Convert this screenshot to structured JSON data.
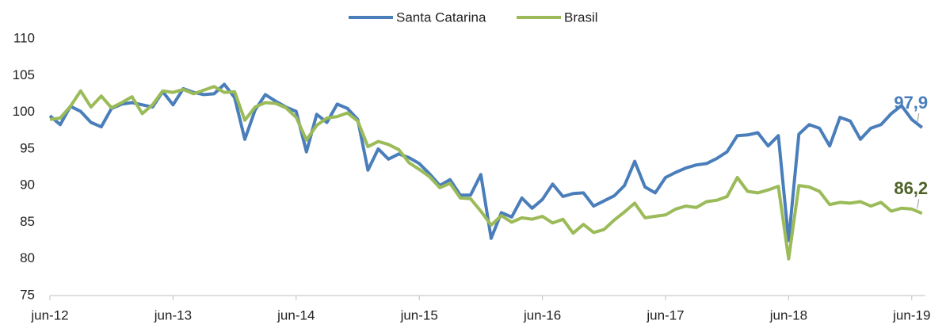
{
  "chart_data": {
    "type": "line",
    "categories": [
      "jun-12",
      null,
      null,
      null,
      null,
      null,
      null,
      null,
      null,
      null,
      null,
      null,
      "jun-13",
      null,
      null,
      null,
      null,
      null,
      null,
      null,
      null,
      null,
      null,
      null,
      "jun-14",
      null,
      null,
      null,
      null,
      null,
      null,
      null,
      null,
      null,
      null,
      null,
      "jun-15",
      null,
      null,
      null,
      null,
      null,
      null,
      null,
      null,
      null,
      null,
      null,
      "jun-16",
      null,
      null,
      null,
      null,
      null,
      null,
      null,
      null,
      null,
      null,
      null,
      "jun-17",
      null,
      null,
      null,
      null,
      null,
      null,
      null,
      null,
      null,
      null,
      null,
      "jun-18",
      null,
      null,
      null,
      null,
      null,
      null,
      null,
      null,
      null,
      null,
      null,
      "jun-19",
      null
    ],
    "series": [
      {
        "name": "Santa Catarina",
        "color": "#4a7ebb",
        "label_color": "#4a7ebb",
        "values": [
          99.5,
          98.3,
          100.8,
          100.1,
          98.6,
          98.0,
          100.5,
          101.1,
          101.3,
          101.0,
          100.7,
          102.8,
          101.0,
          103.2,
          102.7,
          102.4,
          102.5,
          103.8,
          102.0,
          96.3,
          100.3,
          102.4,
          101.5,
          100.7,
          100.1,
          94.6,
          99.7,
          98.6,
          101.1,
          100.5,
          99.0,
          92.1,
          95.0,
          93.6,
          94.3,
          93.8,
          93.0,
          91.6,
          90.0,
          90.8,
          88.7,
          88.7,
          91.5,
          82.8,
          86.3,
          85.7,
          88.3,
          86.9,
          88.1,
          90.2,
          88.5,
          88.9,
          89.0,
          87.2,
          87.9,
          88.6,
          90.0,
          93.3,
          89.8,
          89.0,
          91.1,
          91.8,
          92.4,
          92.8,
          93.0,
          93.7,
          94.6,
          96.8,
          96.9,
          97.2,
          95.4,
          96.8,
          82.5,
          97.0,
          98.3,
          97.8,
          95.4,
          99.3,
          98.8,
          96.3,
          97.8,
          98.3,
          99.8,
          100.9,
          99.0,
          97.9
        ],
        "value_labels": [
          null,
          null,
          null,
          null,
          null,
          null,
          null,
          null,
          null,
          null,
          null,
          null,
          null,
          null,
          null,
          null,
          null,
          null,
          null,
          null,
          null,
          null,
          null,
          null,
          null,
          null,
          null,
          null,
          null,
          null,
          null,
          null,
          null,
          null,
          null,
          null,
          null,
          null,
          null,
          null,
          null,
          null,
          null,
          null,
          null,
          null,
          null,
          null,
          null,
          null,
          null,
          null,
          null,
          null,
          null,
          null,
          null,
          null,
          null,
          null,
          null,
          null,
          null,
          null,
          null,
          null,
          null,
          null,
          null,
          null,
          null,
          null,
          null,
          null,
          null,
          null,
          null,
          null,
          null,
          null,
          null,
          null,
          null,
          null,
          null,
          "97,9"
        ]
      },
      {
        "name": "Brasil",
        "color": "#9bbb59",
        "label_color": "#4f6228",
        "values": [
          99.0,
          99.2,
          100.8,
          102.9,
          100.7,
          102.2,
          100.6,
          101.3,
          102.1,
          99.8,
          101.0,
          102.9,
          102.7,
          103.1,
          102.5,
          103.0,
          103.5,
          102.7,
          102.8,
          98.9,
          100.7,
          101.3,
          101.2,
          100.6,
          99.3,
          96.2,
          98.2,
          99.2,
          99.4,
          99.9,
          98.8,
          95.3,
          96.0,
          95.6,
          94.9,
          93.1,
          92.2,
          91.2,
          89.7,
          90.3,
          88.3,
          88.2,
          86.5,
          84.6,
          85.9,
          85.0,
          85.6,
          85.4,
          85.8,
          84.9,
          85.4,
          83.5,
          84.7,
          83.6,
          84.0,
          85.3,
          86.4,
          87.6,
          85.6,
          85.8,
          86.0,
          86.8,
          87.2,
          87.0,
          87.8,
          88.0,
          88.5,
          91.1,
          89.2,
          89.0,
          89.4,
          89.9,
          80.0,
          90.0,
          89.8,
          89.2,
          87.4,
          87.7,
          87.6,
          87.8,
          87.2,
          87.7,
          86.5,
          86.9,
          86.8,
          86.2
        ],
        "value_labels": [
          null,
          null,
          null,
          null,
          null,
          null,
          null,
          null,
          null,
          null,
          null,
          null,
          null,
          null,
          null,
          null,
          null,
          null,
          null,
          null,
          null,
          null,
          null,
          null,
          null,
          null,
          null,
          null,
          null,
          null,
          null,
          null,
          null,
          null,
          null,
          null,
          null,
          null,
          null,
          null,
          null,
          null,
          null,
          null,
          null,
          null,
          null,
          null,
          null,
          null,
          null,
          null,
          null,
          null,
          null,
          null,
          null,
          null,
          null,
          null,
          null,
          null,
          null,
          null,
          null,
          null,
          null,
          null,
          null,
          null,
          null,
          null,
          null,
          null,
          null,
          null,
          null,
          null,
          null,
          null,
          null,
          null,
          null,
          null,
          null,
          "86,2"
        ]
      }
    ],
    "ylim": [
      75,
      110
    ],
    "yticks": [
      75,
      80,
      85,
      90,
      95,
      100,
      105,
      110
    ],
    "grid": false,
    "legend": "top"
  }
}
